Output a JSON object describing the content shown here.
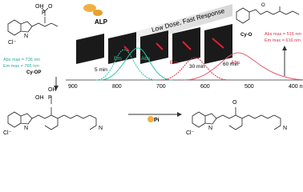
{
  "enzyme": "ALP",
  "banner": "Low Dose, Fast Response",
  "time_points": [
    "5 min",
    "30 min",
    "60 min"
  ],
  "probe": {
    "name": "Cy-OP",
    "abs_max": "Abs max = 736 nm",
    "em_max": "Em max = 765 nm"
  },
  "product": {
    "name": "Cy-O",
    "abs_max": "Abs max = 516 nm",
    "em_max": "Em max = 616 nm"
  },
  "spectrum": {
    "probe_labels": [
      "Em",
      "Abs"
    ],
    "product_labels": [
      "Em",
      "Abs"
    ],
    "ticks": [
      "900",
      "800",
      "700",
      "600",
      "500",
      "400 nm"
    ]
  },
  "byproduct": "Pi",
  "atoms": {
    "nitrogen": "N",
    "chloride": "Cl⁻",
    "oxygen": "O",
    "phosphorus": "P",
    "hydroxyl": "OH"
  }
}
